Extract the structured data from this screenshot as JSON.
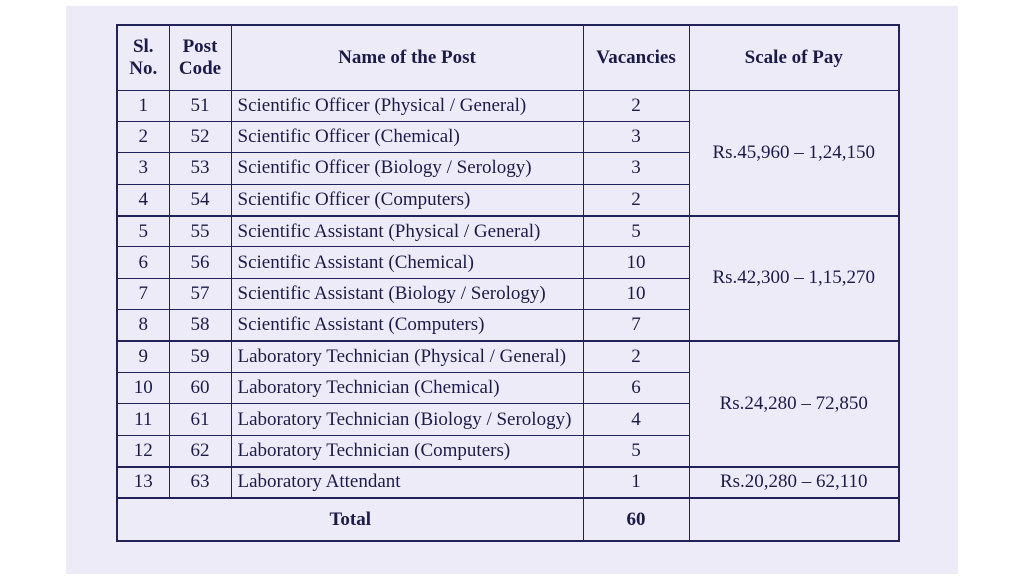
{
  "table": {
    "headers": [
      [
        "Sl.",
        "No."
      ],
      [
        "Post",
        "Code"
      ],
      [
        "Name of the Post"
      ],
      [
        "Vacancies"
      ],
      [
        "Scale of Pay"
      ]
    ],
    "groups": [
      {
        "pay": "Rs.45,960 – 1,24,150",
        "rows": [
          [
            1,
            51,
            "Scientific Officer (Physical / General)",
            2
          ],
          [
            2,
            52,
            "Scientific Officer (Chemical)",
            3
          ],
          [
            3,
            53,
            "Scientific Officer (Biology / Serology)",
            3
          ],
          [
            4,
            54,
            "Scientific Officer (Computers)",
            2
          ]
        ]
      },
      {
        "pay": "Rs.42,300 – 1,15,270",
        "rows": [
          [
            5,
            55,
            "Scientific Assistant (Physical / General)",
            5
          ],
          [
            6,
            56,
            "Scientific Assistant (Chemical)",
            10
          ],
          [
            7,
            57,
            "Scientific Assistant (Biology / Serology)",
            10
          ],
          [
            8,
            58,
            "Scientific Assistant (Computers)",
            7
          ]
        ]
      },
      {
        "pay": "Rs.24,280 – 72,850",
        "rows": [
          [
            9,
            59,
            "Laboratory Technician (Physical / General)",
            2
          ],
          [
            10,
            60,
            "Laboratory Technician (Chemical)",
            6
          ],
          [
            11,
            61,
            "Laboratory Technician (Biology / Serology)",
            4
          ],
          [
            12,
            62,
            "Laboratory Technician (Computers)",
            5
          ]
        ]
      },
      {
        "pay": "Rs.20,280 – 62,110",
        "rows": [
          [
            13,
            63,
            "Laboratory Attendant",
            1
          ]
        ]
      }
    ],
    "total": {
      "label": "Total",
      "vacancies": 60
    }
  }
}
